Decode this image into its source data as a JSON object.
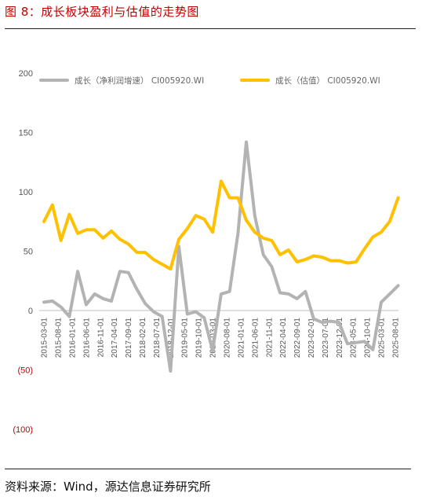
{
  "header": {
    "title": "图 8：成长板块盈利与估值的走势图"
  },
  "footer": {
    "source": "资料来源：Wind，源达信息证券研究所"
  },
  "colors": {
    "title": "#c00000",
    "negative_label": "#c00000"
  },
  "chart_data": {
    "type": "line",
    "ylim": [
      -100,
      200
    ],
    "y_ticks": [
      {
        "value": 200,
        "label": "200"
      },
      {
        "value": 150,
        "label": "150"
      },
      {
        "value": 100,
        "label": "100"
      },
      {
        "value": 50,
        "label": "50"
      },
      {
        "value": 0,
        "label": "0"
      },
      {
        "value": -50,
        "label": "(50)"
      },
      {
        "value": -100,
        "label": "(100)"
      }
    ],
    "x_labels": [
      "2015-03-01",
      "2015-08-01",
      "2016-01-01",
      "2016-06-01",
      "2016-11-01",
      "2017-04-01",
      "2017-09-01",
      "2018-02-01",
      "2018-07-01",
      "2018-12-01",
      "2019-05-01",
      "2019-10-01",
      "2020-03-01",
      "2020-08-01",
      "2021-01-01",
      "2021-06-01",
      "2021-11-01",
      "2022-04-01",
      "2022-09-01",
      "2023-02-01",
      "2023-07-01",
      "2023-12-01",
      "2024-05-01",
      "2024-10-01",
      "2025-03-01",
      "2025-08-01"
    ],
    "x_range": [
      "2015-03-01",
      "2025-08-01"
    ],
    "legend_position": "top",
    "grid": false,
    "series": [
      {
        "name": "成长（净利润增速） CI005920.WI",
        "color": "#b3b3b3",
        "x": [
          "2015-03-01",
          "2015-06-01",
          "2015-09-01",
          "2015-12-01",
          "2016-03-01",
          "2016-06-01",
          "2016-09-01",
          "2016-12-01",
          "2017-03-01",
          "2017-06-01",
          "2017-09-01",
          "2017-12-01",
          "2018-03-01",
          "2018-06-01",
          "2018-09-01",
          "2018-12-01",
          "2019-03-01",
          "2019-06-01",
          "2019-09-01",
          "2019-12-01",
          "2020-03-01",
          "2020-06-01",
          "2020-09-01",
          "2020-12-01",
          "2021-03-01",
          "2021-06-01",
          "2021-09-01",
          "2021-12-01",
          "2022-03-01",
          "2022-06-01",
          "2022-09-01",
          "2022-12-01",
          "2023-03-01",
          "2023-06-01",
          "2023-09-01",
          "2023-12-01",
          "2024-03-01",
          "2024-06-01",
          "2024-09-01",
          "2024-12-01",
          "2025-03-01",
          "2025-06-01",
          "2025-09-01"
        ],
        "values": [
          7,
          8,
          3,
          -5,
          33,
          5,
          14,
          10,
          8,
          33,
          32,
          18,
          6,
          -1,
          -5,
          -51,
          54,
          -3,
          -1,
          -6,
          -34,
          14,
          16,
          65,
          142,
          80,
          47,
          37,
          15,
          14,
          10,
          16,
          -7,
          -10,
          -9,
          -10,
          -28,
          -27,
          -26,
          -33,
          7,
          14,
          21
        ]
      },
      {
        "name": "成长（估值） CI005920.WI",
        "color": "#ffc000",
        "x": [
          "2015-03-01",
          "2015-06-01",
          "2015-09-01",
          "2015-12-01",
          "2016-03-01",
          "2016-06-01",
          "2016-09-01",
          "2016-12-01",
          "2017-03-01",
          "2017-06-01",
          "2017-09-01",
          "2017-12-01",
          "2018-03-01",
          "2018-06-01",
          "2018-09-01",
          "2018-12-01",
          "2019-03-01",
          "2019-06-01",
          "2019-09-01",
          "2019-12-01",
          "2020-03-01",
          "2020-06-01",
          "2020-09-01",
          "2020-12-01",
          "2021-03-01",
          "2021-06-01",
          "2021-09-01",
          "2021-12-01",
          "2022-03-01",
          "2022-06-01",
          "2022-09-01",
          "2022-12-01",
          "2023-03-01",
          "2023-06-01",
          "2023-09-01",
          "2023-12-01",
          "2024-03-01",
          "2024-06-01",
          "2024-09-01",
          "2024-12-01",
          "2025-03-01",
          "2025-06-01",
          "2025-09-01"
        ],
        "values": [
          75,
          89,
          59,
          81,
          65,
          68,
          68,
          61,
          67,
          60,
          56,
          49,
          49,
          43,
          39,
          35,
          60,
          69,
          80,
          77,
          66,
          109,
          95,
          95,
          76,
          66,
          61,
          59,
          47,
          51,
          41,
          43,
          46,
          45,
          42,
          42,
          40,
          41,
          52,
          62,
          66,
          75,
          95
        ]
      }
    ]
  }
}
